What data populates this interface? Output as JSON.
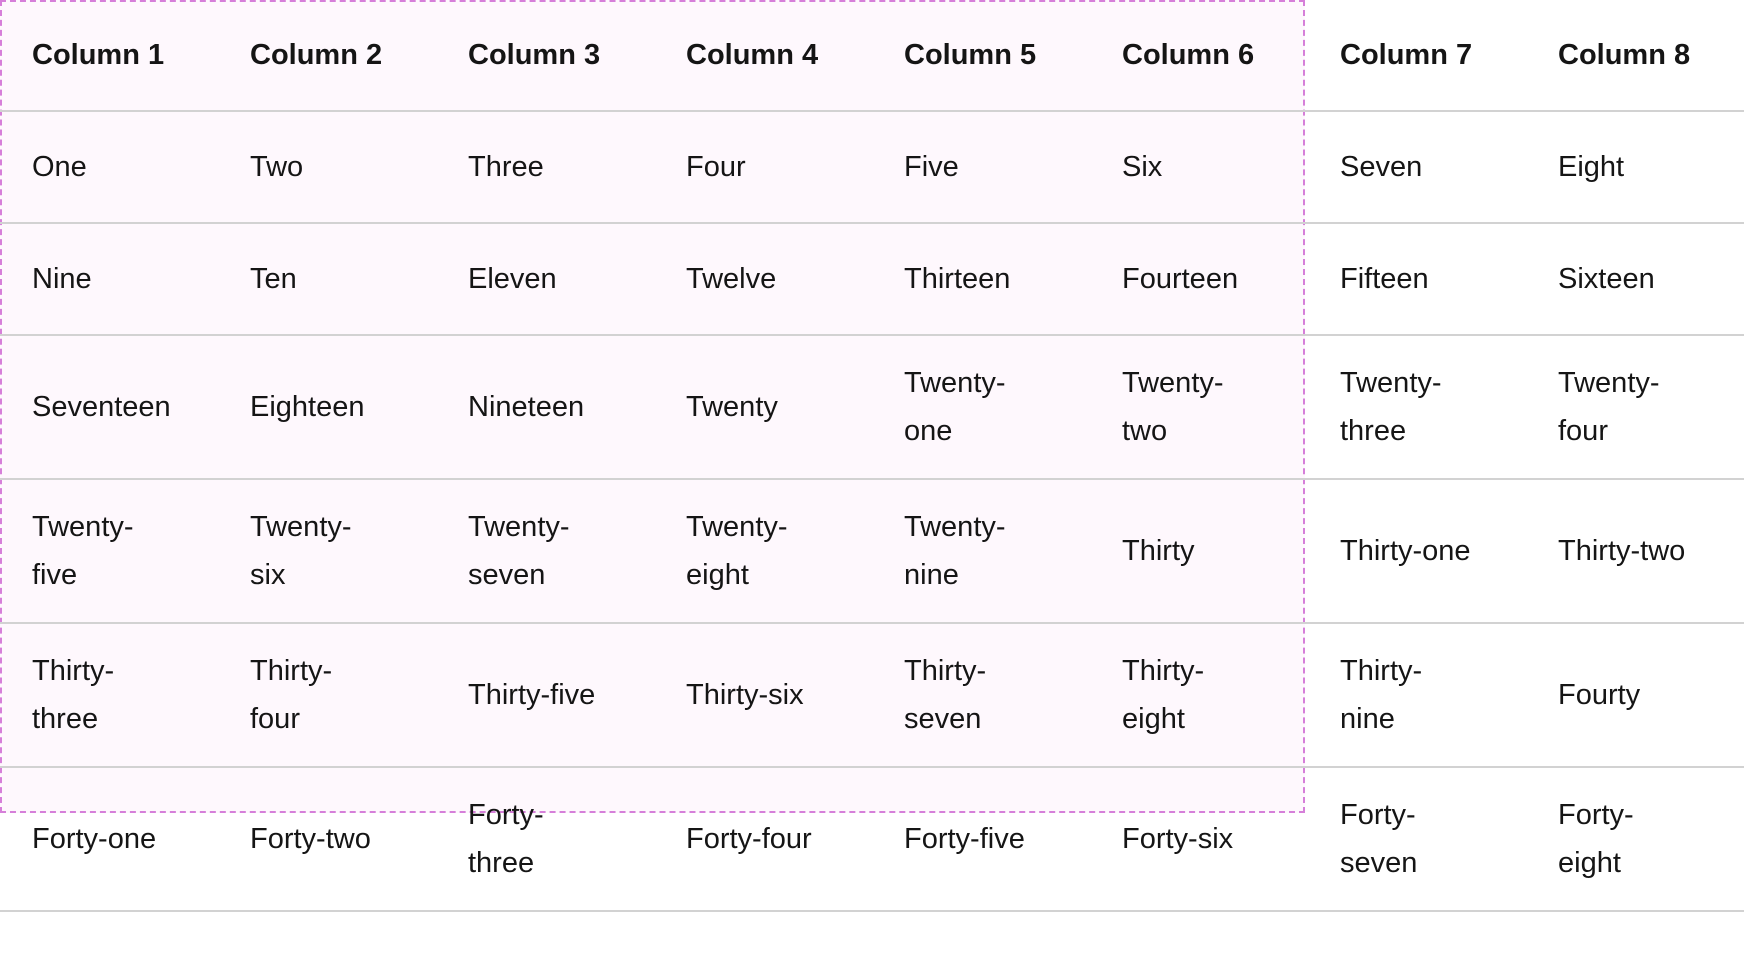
{
  "table": {
    "headers": [
      "Column 1",
      "Column 2",
      "Column 3",
      "Column 4",
      "Column 5",
      "Column 6",
      "Column 7",
      "Column 8"
    ],
    "rows": [
      [
        "One",
        "Two",
        "Three",
        "Four",
        "Five",
        "Six",
        "Seven",
        "Eight"
      ],
      [
        "Nine",
        "Ten",
        "Eleven",
        "Twelve",
        "Thirteen",
        "Fourteen",
        "Fifteen",
        "Sixteen"
      ],
      [
        "Seventeen",
        "Eighteen",
        "Nineteen",
        "Twenty",
        "Twenty-one",
        "Twenty-two",
        "Twenty-three",
        "Twenty-four"
      ],
      [
        "Twenty-five",
        "Twenty-six",
        "Twenty-seven",
        "Twenty-eight",
        "Twenty-nine",
        "Thirty",
        "Thirty-one",
        "Thirty-two"
      ],
      [
        "Thirty-three",
        "Thirty-four",
        "Thirty-five",
        "Thirty-six",
        "Thirty-seven",
        "Thirty-eight",
        "Thirty-nine",
        "Fourty"
      ],
      [
        "Forty-one",
        "Forty-two",
        "Forty-three",
        "Forty-four",
        "Forty-five",
        "Forty-six",
        "Forty-seven",
        "Forty-eight"
      ]
    ]
  },
  "colors": {
    "highlight_background": "#fef8fd",
    "highlight_border": "#d67fd9",
    "row_divider": "#d2d2d2",
    "text": "#151515"
  }
}
